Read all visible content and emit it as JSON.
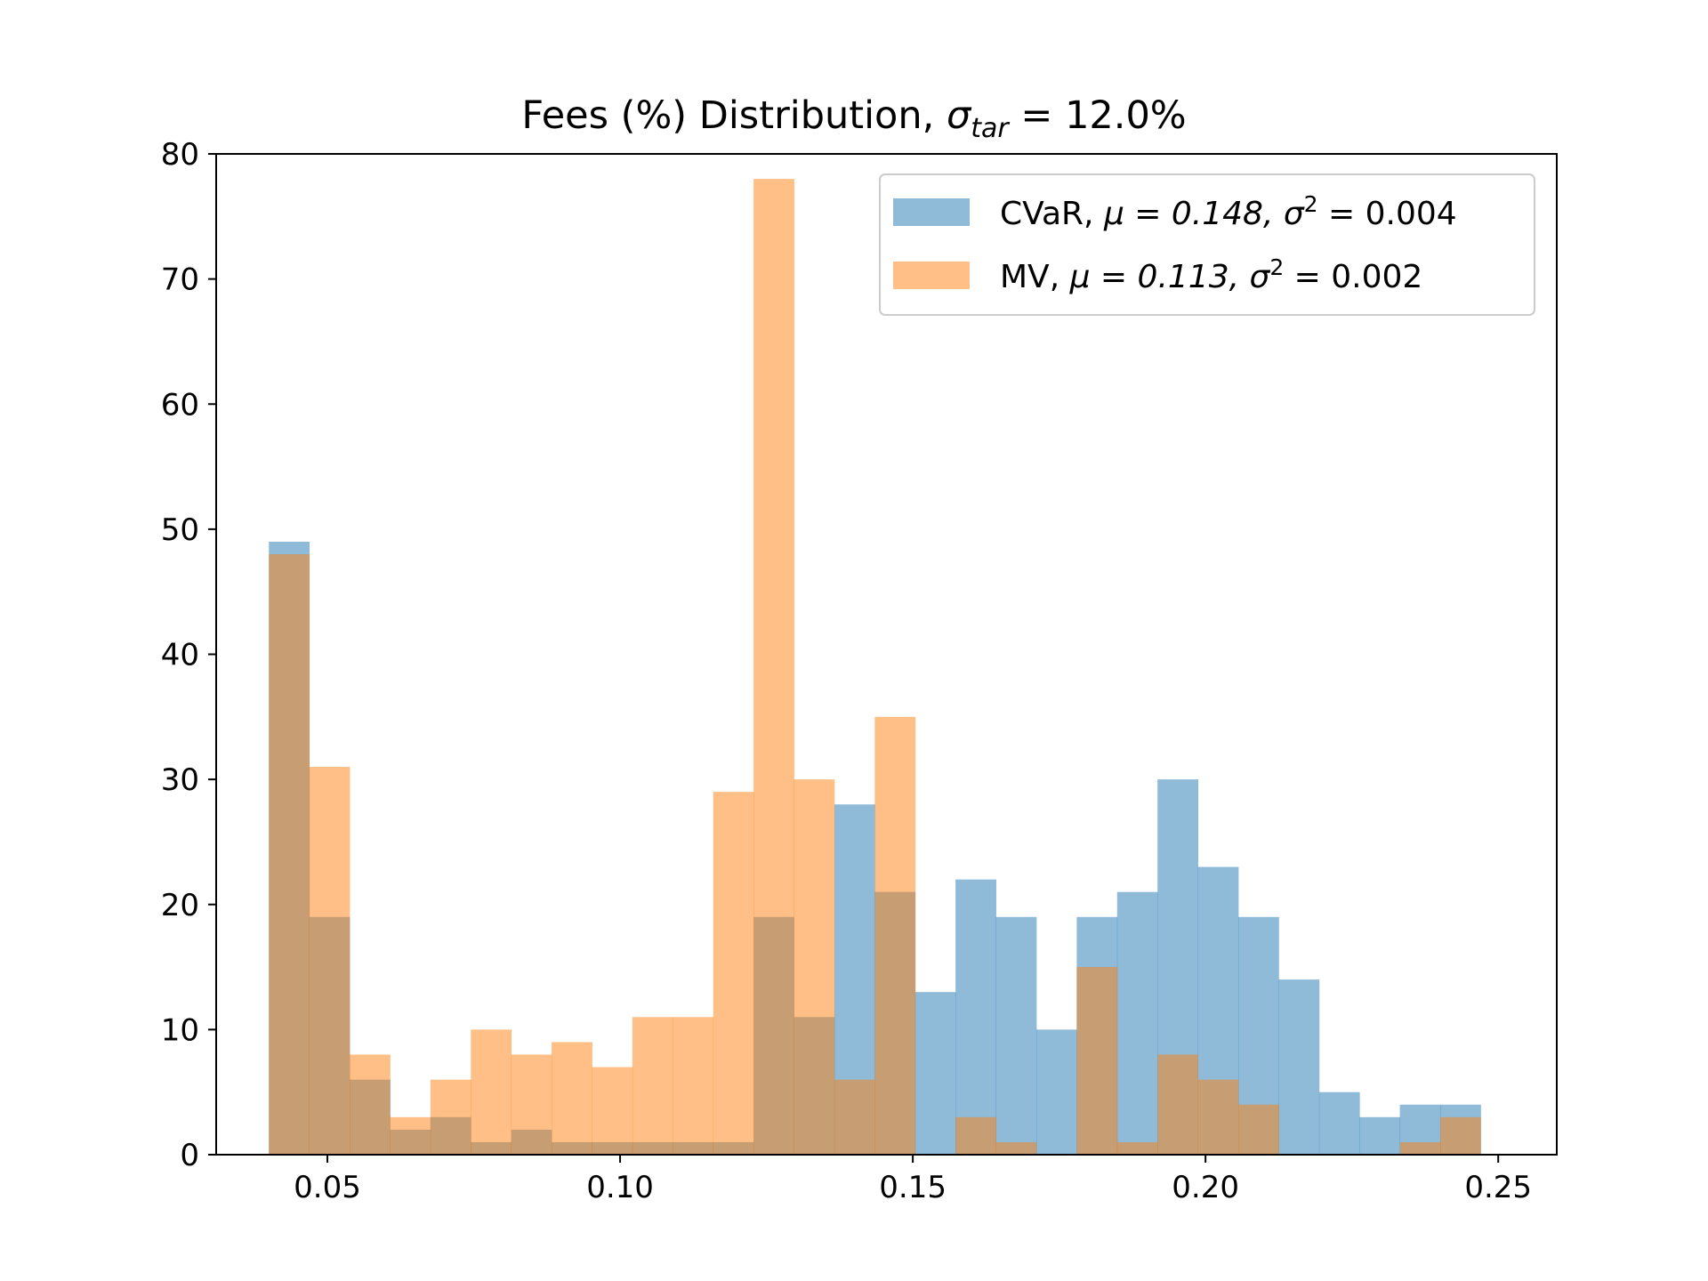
{
  "chart_data": {
    "type": "bar",
    "title": "Fees (%) Distribution, σtar = 12.0%",
    "title_parts": {
      "prefix": "Fees (%) Distribution, ",
      "symbol": "σ",
      "subscript": "tar",
      "suffix": " = 12.0%"
    },
    "xlabel": "",
    "ylabel": "",
    "xlim": [
      0.031,
      0.26
    ],
    "ylim": [
      0,
      80
    ],
    "x_ticks": [
      "0.05",
      "0.10",
      "0.15",
      "0.20",
      "0.25"
    ],
    "y_ticks": [
      "0",
      "10",
      "20",
      "30",
      "40",
      "50",
      "60",
      "70",
      "80"
    ],
    "grid": false,
    "legend_position": "top-right",
    "series": [
      {
        "name": "CVaR, μ = 0.148, σ² = 0.004",
        "legend": {
          "prefix": "CVaR, ",
          "mu": "μ = 0.148, ",
          "sigma": "σ",
          "sup": "2",
          "rest": " = 0.004"
        },
        "color": "#1f77b4",
        "opacity": 0.5,
        "bins": [
          [
            0.04,
            0.0469,
            49
          ],
          [
            0.0469,
            0.0538,
            19
          ],
          [
            0.0538,
            0.0607,
            6
          ],
          [
            0.0607,
            0.0676,
            2
          ],
          [
            0.0676,
            0.0745,
            3
          ],
          [
            0.0745,
            0.0814,
            1
          ],
          [
            0.0814,
            0.0883,
            2
          ],
          [
            0.0883,
            0.0952,
            1
          ],
          [
            0.0952,
            0.1021,
            1
          ],
          [
            0.1021,
            0.109,
            1
          ],
          [
            0.109,
            0.1159,
            1
          ],
          [
            0.1159,
            0.1228,
            1
          ],
          [
            0.1228,
            0.1297,
            19
          ],
          [
            0.1297,
            0.1366,
            11
          ],
          [
            0.1366,
            0.1435,
            28
          ],
          [
            0.1435,
            0.1504,
            21
          ],
          [
            0.1504,
            0.1573,
            13
          ],
          [
            0.1573,
            0.1642,
            22
          ],
          [
            0.1642,
            0.1711,
            19
          ],
          [
            0.1711,
            0.178,
            10
          ],
          [
            0.178,
            0.1849,
            19
          ],
          [
            0.1849,
            0.1918,
            21
          ],
          [
            0.1918,
            0.1987,
            30
          ],
          [
            0.1987,
            0.2056,
            23
          ],
          [
            0.2056,
            0.2125,
            19
          ],
          [
            0.2125,
            0.2194,
            14
          ],
          [
            0.2194,
            0.2263,
            5
          ],
          [
            0.2263,
            0.2332,
            3
          ],
          [
            0.2332,
            0.2401,
            4
          ],
          [
            0.2401,
            0.247,
            4
          ]
        ]
      },
      {
        "name": "MV, μ = 0.113, σ² = 0.002",
        "legend": {
          "prefix": "MV, ",
          "mu": "μ = 0.113, ",
          "sigma": "σ",
          "sup": "2",
          "rest": " = 0.002"
        },
        "color": "#ff7f0e",
        "opacity": 0.5,
        "bins": [
          [
            0.04,
            0.0469,
            48
          ],
          [
            0.0469,
            0.0538,
            31
          ],
          [
            0.0538,
            0.0607,
            8
          ],
          [
            0.0607,
            0.0676,
            3
          ],
          [
            0.0676,
            0.0745,
            6
          ],
          [
            0.0745,
            0.0814,
            10
          ],
          [
            0.0814,
            0.0883,
            8
          ],
          [
            0.0883,
            0.0952,
            9
          ],
          [
            0.0952,
            0.1021,
            7
          ],
          [
            0.1021,
            0.109,
            11
          ],
          [
            0.109,
            0.1159,
            11
          ],
          [
            0.1159,
            0.1228,
            29
          ],
          [
            0.1228,
            0.1297,
            78
          ],
          [
            0.1297,
            0.1366,
            30
          ],
          [
            0.1366,
            0.1435,
            6
          ],
          [
            0.1435,
            0.1504,
            35
          ],
          [
            0.1504,
            0.1573,
            0
          ],
          [
            0.1573,
            0.1642,
            3
          ],
          [
            0.1642,
            0.1711,
            1
          ],
          [
            0.1711,
            0.178,
            0
          ],
          [
            0.178,
            0.1849,
            15
          ],
          [
            0.1849,
            0.1918,
            1
          ],
          [
            0.1918,
            0.1987,
            8
          ],
          [
            0.1987,
            0.2056,
            6
          ],
          [
            0.2056,
            0.2125,
            4
          ],
          [
            0.2125,
            0.2194,
            0
          ],
          [
            0.2194,
            0.2263,
            0
          ],
          [
            0.2263,
            0.2332,
            0
          ],
          [
            0.2332,
            0.2401,
            1
          ],
          [
            0.2401,
            0.247,
            3
          ]
        ]
      }
    ]
  }
}
